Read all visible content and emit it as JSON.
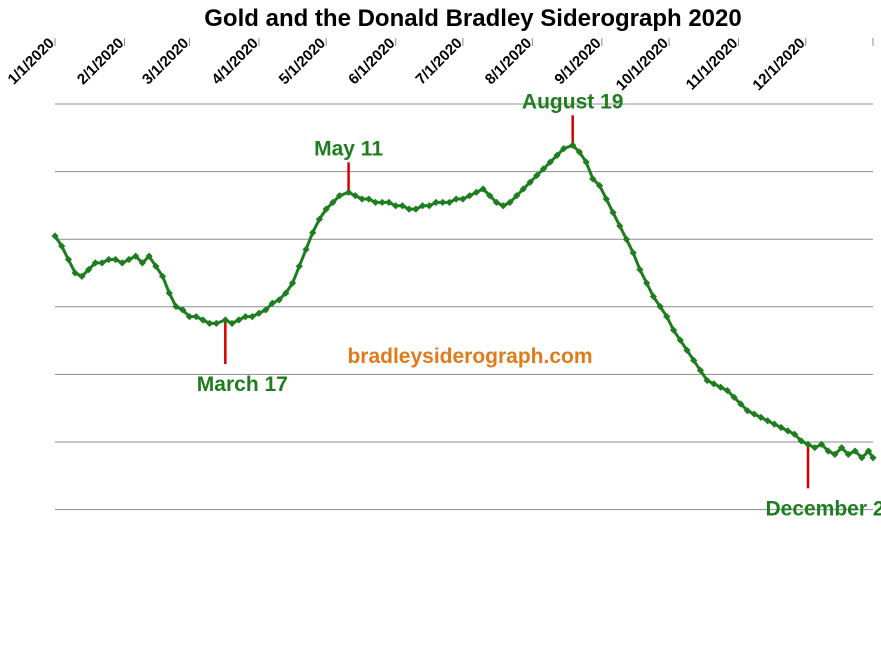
{
  "chart_data": {
    "type": "line",
    "title": "Gold and the Donald Bradley Siderograph 2020",
    "xlabel": "",
    "ylabel": "",
    "x_tick_labels": [
      "1/1/2020",
      "2/1/2020",
      "3/1/2020",
      "4/1/2020",
      "5/1/2020",
      "6/1/2020",
      "7/1/2020",
      "8/1/2020",
      "9/1/2020",
      "10/1/2020",
      "11/1/2020",
      "12/1/2020"
    ],
    "y_axis_labels_shown": false,
    "grid": "horizontal",
    "y_gridlines": 7,
    "line_color": "#1e7d1e",
    "marker": "diamond",
    "annotation_color": "#d40000",
    "annotation_text_color": "#1e7d1e",
    "watermark": "bradleysiderograph.com",
    "watermark_color": "#e07b19",
    "series": [
      {
        "x": [
          "2020-01-01",
          "2020-01-04",
          "2020-01-07",
          "2020-01-10",
          "2020-01-13",
          "2020-01-16",
          "2020-01-19",
          "2020-01-22",
          "2020-01-25",
          "2020-01-28",
          "2020-01-31",
          "2020-02-03",
          "2020-02-06",
          "2020-02-09",
          "2020-02-12",
          "2020-02-15",
          "2020-02-18",
          "2020-02-21",
          "2020-02-24",
          "2020-02-27",
          "2020-03-01",
          "2020-03-04",
          "2020-03-07",
          "2020-03-10",
          "2020-03-13",
          "2020-03-17",
          "2020-03-20",
          "2020-03-23",
          "2020-03-26",
          "2020-03-29",
          "2020-04-01",
          "2020-04-04",
          "2020-04-07",
          "2020-04-10",
          "2020-04-13",
          "2020-04-16",
          "2020-04-19",
          "2020-04-22",
          "2020-04-25",
          "2020-04-28",
          "2020-05-01",
          "2020-05-04",
          "2020-05-07",
          "2020-05-11",
          "2020-05-14",
          "2020-05-17",
          "2020-05-20",
          "2020-05-23",
          "2020-05-26",
          "2020-05-29",
          "2020-06-01",
          "2020-06-04",
          "2020-06-07",
          "2020-06-10",
          "2020-06-13",
          "2020-06-16",
          "2020-06-19",
          "2020-06-22",
          "2020-06-25",
          "2020-06-28",
          "2020-07-01",
          "2020-07-04",
          "2020-07-07",
          "2020-07-10",
          "2020-07-13",
          "2020-07-16",
          "2020-07-19",
          "2020-07-22",
          "2020-07-25",
          "2020-07-28",
          "2020-07-31",
          "2020-08-03",
          "2020-08-06",
          "2020-08-09",
          "2020-08-12",
          "2020-08-15",
          "2020-08-19",
          "2020-08-22",
          "2020-08-25",
          "2020-08-28",
          "2020-08-31",
          "2020-09-03",
          "2020-09-06",
          "2020-09-09",
          "2020-09-12",
          "2020-09-15",
          "2020-09-18",
          "2020-09-21",
          "2020-09-24",
          "2020-09-27",
          "2020-09-30",
          "2020-10-03",
          "2020-10-06",
          "2020-10-09",
          "2020-10-12",
          "2020-10-15",
          "2020-10-18",
          "2020-10-21",
          "2020-10-24",
          "2020-10-27",
          "2020-10-30",
          "2020-11-02",
          "2020-11-05",
          "2020-11-08",
          "2020-11-11",
          "2020-11-14",
          "2020-11-17",
          "2020-11-20",
          "2020-11-23",
          "2020-11-26",
          "2020-11-29",
          "2020-12-02",
          "2020-12-05",
          "2020-12-08",
          "2020-12-11",
          "2020-12-14",
          "2020-12-17",
          "2020-12-20",
          "2020-12-23",
          "2020-12-26",
          "2020-12-29",
          "2020-12-31"
        ],
        "values": [
          6.0,
          5.7,
          5.3,
          4.9,
          4.8,
          5.0,
          5.2,
          5.2,
          5.3,
          5.3,
          5.2,
          5.3,
          5.4,
          5.2,
          5.4,
          5.1,
          4.8,
          4.3,
          3.9,
          3.8,
          3.6,
          3.6,
          3.5,
          3.4,
          3.4,
          3.5,
          3.4,
          3.5,
          3.6,
          3.6,
          3.7,
          3.8,
          4.0,
          4.1,
          4.3,
          4.6,
          5.1,
          5.6,
          6.1,
          6.5,
          6.8,
          7.0,
          7.2,
          7.3,
          7.2,
          7.1,
          7.1,
          7.0,
          7.0,
          7.0,
          6.9,
          6.9,
          6.8,
          6.8,
          6.9,
          6.9,
          7.0,
          7.0,
          7.0,
          7.1,
          7.1,
          7.2,
          7.3,
          7.4,
          7.2,
          7.0,
          6.9,
          7.0,
          7.2,
          7.4,
          7.6,
          7.8,
          8.0,
          8.2,
          8.4,
          8.6,
          8.7,
          8.5,
          8.2,
          7.7,
          7.5,
          7.1,
          6.7,
          6.3,
          5.9,
          5.5,
          5.0,
          4.6,
          4.2,
          3.9,
          3.6,
          3.2,
          2.9,
          2.6,
          2.3,
          2.0,
          1.7,
          1.6,
          1.5,
          1.4,
          1.2,
          1.0,
          0.8,
          0.7,
          0.6,
          0.5,
          0.4,
          0.3,
          0.2,
          0.1,
          -0.1,
          -0.2,
          -0.3,
          -0.2,
          -0.4,
          -0.5,
          -0.3,
          -0.5,
          -0.4,
          -0.6,
          -0.4,
          -0.6
        ]
      }
    ],
    "annotations": [
      {
        "label": "March 17",
        "x": "2020-03-17",
        "position": "below"
      },
      {
        "label": "May 11",
        "x": "2020-05-11",
        "position": "above"
      },
      {
        "label": "August 19",
        "x": "2020-08-19",
        "position": "above"
      },
      {
        "label": "December 2",
        "x": "2020-12-02",
        "position": "below"
      }
    ]
  }
}
